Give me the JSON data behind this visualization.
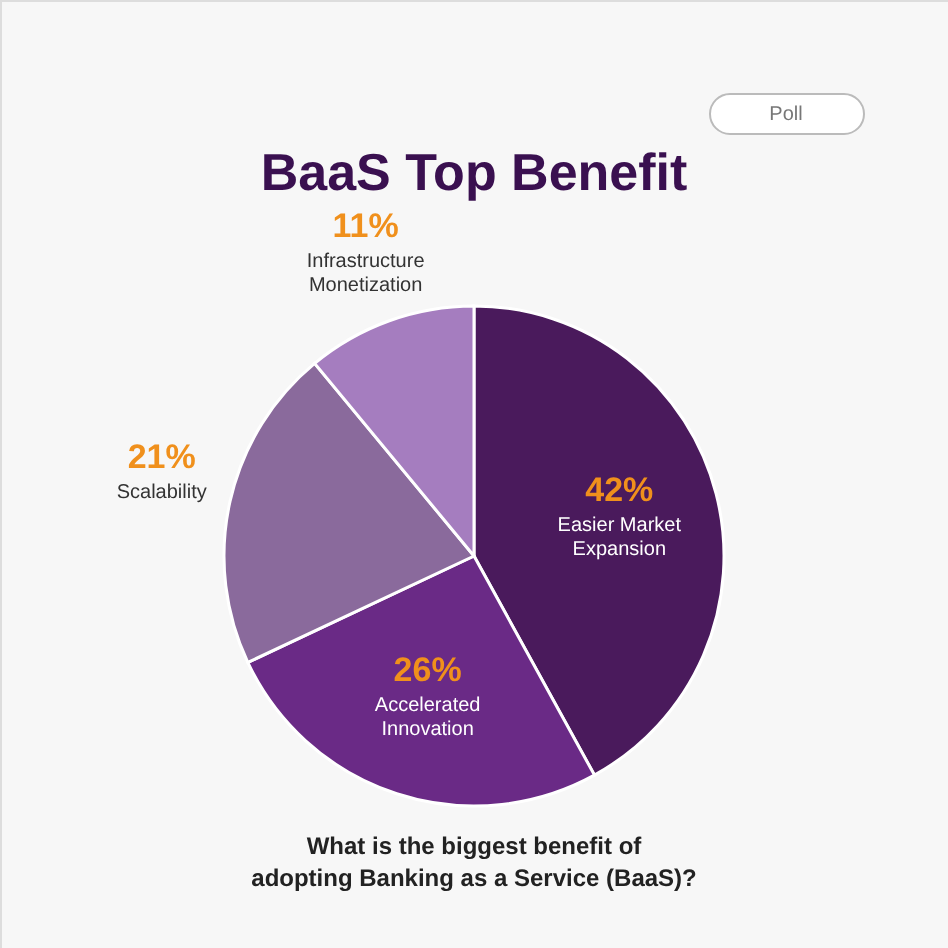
{
  "chart_data": {
    "type": "pie",
    "title": "BaaS Top Benefit",
    "categories": [
      "Easier Market Expansion",
      "Accelerated Innovation",
      "Scalability",
      "Infrastructure Monetization"
    ],
    "values": [
      42,
      26,
      21,
      11
    ],
    "value_labels": [
      "42%",
      "26%",
      "21%",
      "11%"
    ],
    "colors": [
      "#4a1a5c",
      "#6a2a86",
      "#8a6a9c",
      "#a57dbf"
    ],
    "legend": false,
    "annotations": [
      "Poll",
      "What is the biggest benefit of adopting Banking as a Service (BaaS)?"
    ]
  }
}
